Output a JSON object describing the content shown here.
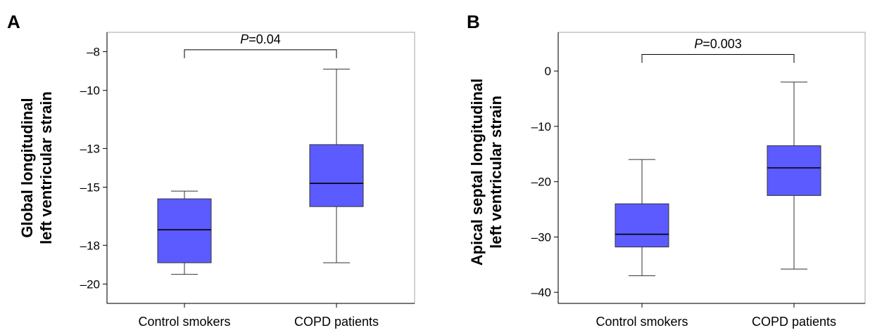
{
  "chart_data": [
    {
      "type": "box",
      "panel_label": "A",
      "ylabel_lines": [
        "Global longitudinal",
        "left ventricular strain"
      ],
      "categories": [
        "Control smokers",
        "COPD patients"
      ],
      "yticks": [
        -20,
        -18,
        -15,
        -13,
        -10,
        -8
      ],
      "ytick_labels": [
        "–20",
        "–18",
        "–15",
        "–13",
        "–10",
        "–8"
      ],
      "ylim": [
        -21.0,
        -7.0
      ],
      "boxes": [
        {
          "category": "Control smokers",
          "whisker_low": -19.5,
          "q1": -18.9,
          "median": -17.2,
          "q3": -15.6,
          "whisker_high": -15.2
        },
        {
          "category": "COPD patients",
          "whisker_low": -18.9,
          "q1": -16.0,
          "median": -14.8,
          "q3": -12.8,
          "whisker_high": -8.9
        }
      ],
      "significance": {
        "from": 0,
        "to": 1,
        "y": -7.9,
        "p_italic": "P",
        "p_value": "=0.04"
      },
      "box_color": "#5b5bff"
    },
    {
      "type": "box",
      "panel_label": "B",
      "ylabel_lines": [
        "Apical septal longitudinal",
        "left ventricular strain"
      ],
      "categories": [
        "Control smokers",
        "COPD patients"
      ],
      "yticks": [
        -40,
        -30,
        -20,
        -10,
        0
      ],
      "ytick_labels": [
        "–40",
        "–30",
        "–20",
        "–10",
        "0"
      ],
      "ylim": [
        -42.0,
        7.0
      ],
      "boxes": [
        {
          "category": "Control smokers",
          "whisker_low": -37.0,
          "q1": -31.8,
          "median": -29.5,
          "q3": -24.0,
          "whisker_high": -16.0
        },
        {
          "category": "COPD patients",
          "whisker_low": -35.8,
          "q1": -22.5,
          "median": -17.5,
          "q3": -13.5,
          "whisker_high": -2.0
        }
      ],
      "significance": {
        "from": 0,
        "to": 1,
        "y": 3.0,
        "p_italic": "P",
        "p_value": "=0.003"
      },
      "box_color": "#5b5bff"
    }
  ]
}
